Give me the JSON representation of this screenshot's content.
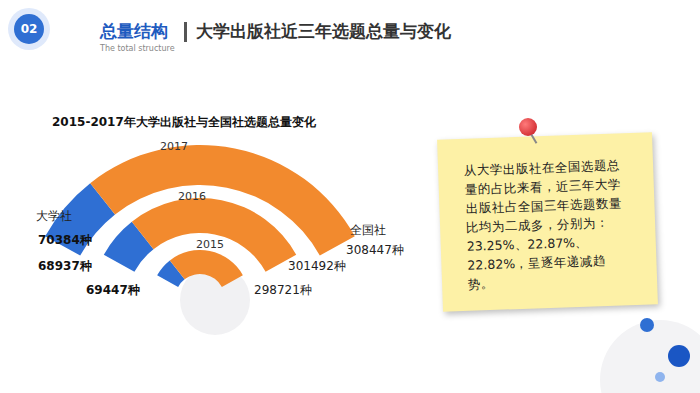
{
  "slide": {
    "number": "02",
    "section": "总量结构",
    "section_en": "The total structure",
    "heading": "大学出版社近三年选题总量与变化",
    "note": "从大学出版社在全国选题总量的占比来看，近三年大学出版社占全国三年选题数量比均为二成多，分别为：23.25%、22.87%、22.82%，呈逐年递减趋势。"
  },
  "chart_data": {
    "type": "pie",
    "title": "2015-2017年大学出版社与全国社选题总量变化",
    "categories": [
      "2017",
      "2016",
      "2015"
    ],
    "series": [
      {
        "name": "大学社",
        "color": "#2f6fd3",
        "values": [
          70384,
          68937,
          69447
        ],
        "value_labels": [
          "70384种",
          "68937种",
          "69447种"
        ]
      },
      {
        "name": "全国社",
        "color": "#f28a2e",
        "values": [
          308447,
          301492,
          298721
        ],
        "value_labels": [
          "308447种",
          "301492种",
          "298721种"
        ]
      }
    ]
  }
}
